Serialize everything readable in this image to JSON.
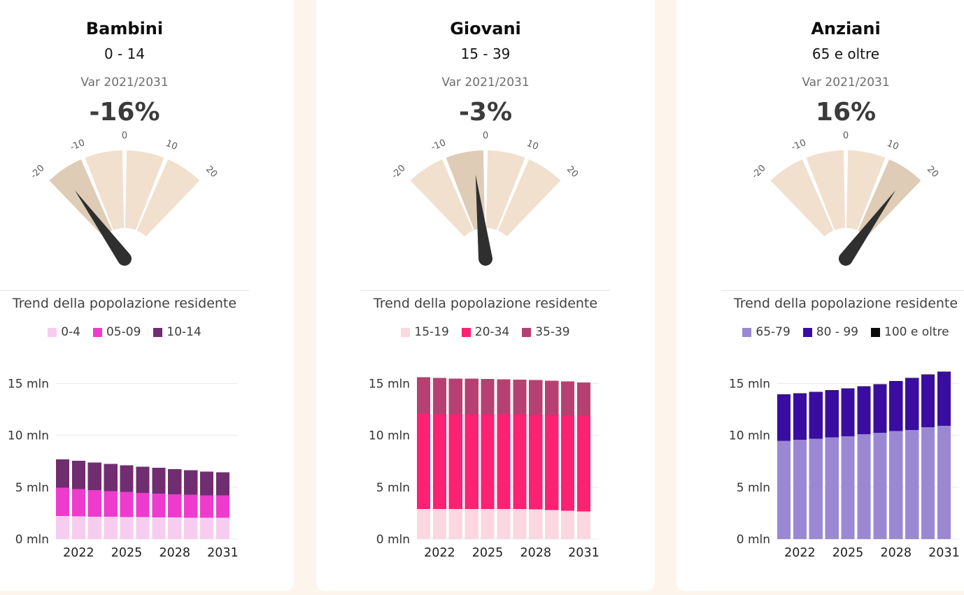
{
  "page": {
    "background": "#fdf5ec",
    "panel_background": "#ffffff"
  },
  "panels": [
    {
      "title": "Bambini",
      "age_range": "0 - 14",
      "var_label": "Var 2021/2031",
      "var_value": "-16%",
      "trend_title": "Trend della popolazione residente"
    },
    {
      "title": "Giovani",
      "age_range": "15 - 39",
      "var_label": "Var 2021/2031",
      "var_value": "-3%",
      "trend_title": "Trend della popolazione residente"
    },
    {
      "title": "Anziani",
      "age_range": "65 e oltre",
      "var_label": "Var 2021/2031",
      "var_value": "16%",
      "trend_title": "Trend della popolazione residente"
    }
  ],
  "gauge_style": {
    "base_color": "#f1e0ce",
    "active_color": "#dfccb6",
    "needle_color": "#2f2f2f",
    "tick_label_color": "#5a5a5a"
  },
  "chart_data": [
    {
      "type": "gauge",
      "panel": "Bambini",
      "label": "Var 2021/2031",
      "value": -16,
      "unit": "%",
      "min": -20,
      "max": 20,
      "ticks": [
        -20,
        -10,
        0,
        10,
        20
      ]
    },
    {
      "type": "bar",
      "stacked": true,
      "panel": "Bambini",
      "title": "Trend della popolazione residente",
      "x": [
        2021,
        2022,
        2023,
        2024,
        2025,
        2026,
        2027,
        2028,
        2029,
        2030,
        2031
      ],
      "x_ticks": [
        2022,
        2025,
        2028,
        2031
      ],
      "yticks": [
        0,
        5,
        10,
        15
      ],
      "ytick_suffix": " mln",
      "ylim": [
        0,
        16.6
      ],
      "series": [
        {
          "name": "0-4",
          "color": "#f6cdf0",
          "values": [
            2.21,
            2.19,
            2.17,
            2.15,
            2.13,
            2.11,
            2.1,
            2.08,
            2.07,
            2.06,
            2.06
          ]
        },
        {
          "name": "05-09",
          "color": "#ee3bce",
          "values": [
            2.74,
            2.64,
            2.55,
            2.47,
            2.4,
            2.33,
            2.27,
            2.23,
            2.19,
            2.16,
            2.14
          ]
        },
        {
          "name": "10-14",
          "color": "#702e70",
          "values": [
            2.72,
            2.7,
            2.67,
            2.63,
            2.59,
            2.54,
            2.49,
            2.43,
            2.36,
            2.29,
            2.23
          ]
        }
      ]
    },
    {
      "type": "gauge",
      "panel": "Giovani",
      "label": "Var 2021/2031",
      "value": -3,
      "unit": "%",
      "min": -20,
      "max": 20,
      "ticks": [
        -20,
        -10,
        0,
        10,
        20
      ]
    },
    {
      "type": "bar",
      "stacked": true,
      "panel": "Giovani",
      "title": "Trend della popolazione residente",
      "x": [
        2021,
        2022,
        2023,
        2024,
        2025,
        2026,
        2027,
        2028,
        2029,
        2030,
        2031
      ],
      "x_ticks": [
        2022,
        2025,
        2028,
        2031
      ],
      "yticks": [
        0,
        5,
        10,
        15
      ],
      "ytick_suffix": " mln",
      "ylim": [
        0,
        16.6
      ],
      "series": [
        {
          "name": "15-19",
          "color": "#fbd7e2",
          "values": [
            2.88,
            2.89,
            2.9,
            2.91,
            2.91,
            2.9,
            2.89,
            2.86,
            2.81,
            2.74,
            2.67
          ]
        },
        {
          "name": "20-34",
          "color": "#fb2173",
          "values": [
            9.16,
            9.14,
            9.12,
            9.11,
            9.1,
            9.11,
            9.12,
            9.14,
            9.17,
            9.19,
            9.21
          ]
        },
        {
          "name": "35-39",
          "color": "#b64170",
          "values": [
            3.54,
            3.49,
            3.45,
            3.42,
            3.4,
            3.37,
            3.35,
            3.32,
            3.28,
            3.24,
            3.2
          ]
        }
      ]
    },
    {
      "type": "gauge",
      "panel": "Anziani",
      "label": "Var 2021/2031",
      "value": 16,
      "unit": "%",
      "min": -20,
      "max": 20,
      "ticks": [
        -20,
        -10,
        0,
        10,
        20
      ]
    },
    {
      "type": "bar",
      "stacked": true,
      "panel": "Anziani",
      "title": "Trend della popolazione residente",
      "x": [
        2021,
        2022,
        2023,
        2024,
        2025,
        2026,
        2027,
        2028,
        2029,
        2030,
        2031
      ],
      "x_ticks": [
        2022,
        2025,
        2028,
        2031
      ],
      "yticks": [
        0,
        5,
        10,
        15
      ],
      "ytick_suffix": " mln",
      "ylim": [
        0,
        16.6
      ],
      "series": [
        {
          "name": "65-79",
          "color": "#9b88d3",
          "values": [
            9.46,
            9.55,
            9.66,
            9.8,
            9.91,
            10.09,
            10.22,
            10.4,
            10.52,
            10.76,
            10.9
          ]
        },
        {
          "name": "80 - 99",
          "color": "#3a0da1",
          "values": [
            4.47,
            4.47,
            4.49,
            4.51,
            4.58,
            4.6,
            4.67,
            4.78,
            4.98,
            5.05,
            5.2
          ]
        },
        {
          "name": "100 e oltre",
          "color": "#0a0a0a",
          "values": [
            0.02,
            0.02,
            0.02,
            0.02,
            0.02,
            0.03,
            0.03,
            0.03,
            0.03,
            0.04,
            0.04
          ]
        }
      ]
    }
  ]
}
